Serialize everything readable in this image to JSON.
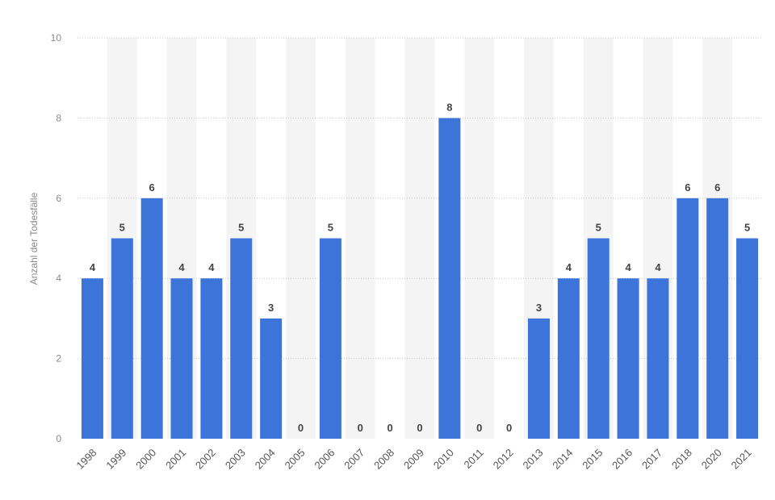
{
  "chart_data": {
    "type": "bar",
    "categories": [
      "1998",
      "1999",
      "2000",
      "2001",
      "2002",
      "2003",
      "2004",
      "2005",
      "2006",
      "2007",
      "2008",
      "2009",
      "2010",
      "2011",
      "2012",
      "2013",
      "2014",
      "2015",
      "2016",
      "2017",
      "2018",
      "2020",
      "2021"
    ],
    "values": [
      4,
      5,
      6,
      4,
      4,
      5,
      3,
      0,
      5,
      0,
      0,
      0,
      8,
      0,
      0,
      3,
      4,
      5,
      4,
      4,
      6,
      6,
      5
    ],
    "title": "",
    "xlabel": "",
    "ylabel": "Anzahl der Todesfälle",
    "ylim": [
      0,
      10
    ],
    "yticks": [
      0,
      2,
      4,
      6,
      8,
      10
    ],
    "grid": "horizontal-dotted",
    "legend": "none",
    "colors": {
      "bar": "#3d74d9",
      "band": "#f4f4f4",
      "grid": "#c8c8c8"
    }
  }
}
